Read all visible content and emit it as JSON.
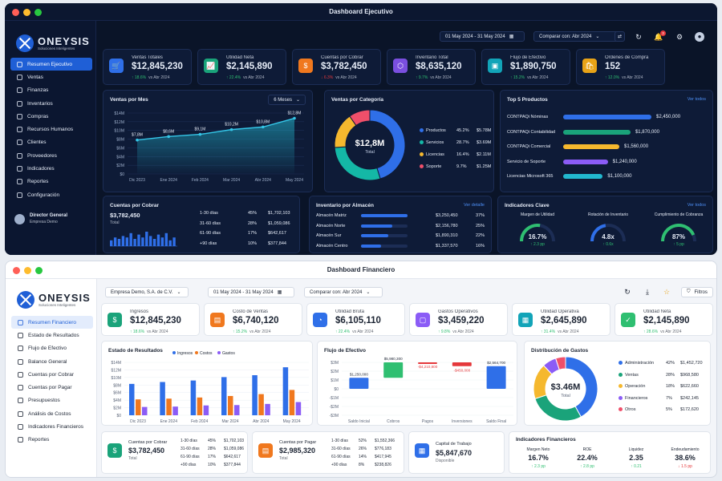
{
  "dark": {
    "title": "Dashboard Ejecutivo",
    "logo": {
      "name": "ONEYSIS",
      "sub": "Soluciones Inteligentes"
    },
    "nav": [
      "Resumen Ejecutivo",
      "Ventas",
      "Finanzas",
      "Inventarios",
      "Compras",
      "Recursos Humanos",
      "Clientes",
      "Proveedores",
      "Indicadores",
      "Reportes",
      "Configuración"
    ],
    "user": {
      "name": "Director General",
      "company": "Empresa Demo"
    },
    "date_range": "01 May 2024 - 31 May 2024",
    "compare": "Comparar con: Abr 2024",
    "notif_count": "3",
    "kpis": [
      {
        "label": "Ventas Totales",
        "value": "$12,845,230",
        "delta": "18.6%",
        "dir": "up",
        "vs": "vs Abr 2024",
        "color": "#2f6fe8",
        "icon": "🛒"
      },
      {
        "label": "Utilidad Neta",
        "value": "$2,145,890",
        "delta": "22.4%",
        "dir": "up",
        "vs": "vs Abr 2024",
        "color": "#1aa37a",
        "icon": "📈"
      },
      {
        "label": "Cuentas por Cobrar",
        "value": "$3,782,450",
        "delta": "6.3%",
        "dir": "down",
        "vs": "vs Abr 2024",
        "color": "#f0781e",
        "icon": "$"
      },
      {
        "label": "Inventario Total",
        "value": "$8,635,120",
        "delta": "9.7%",
        "dir": "up",
        "vs": "vs Abr 2024",
        "color": "#7a4fe0",
        "icon": "⬡"
      },
      {
        "label": "Flujo de Efectivo",
        "value": "$1,890,750",
        "delta": "15.2%",
        "dir": "up",
        "vs": "vs Abr 2024",
        "color": "#12a4b8",
        "icon": "▣"
      },
      {
        "label": "Ordenes de Compra",
        "value": "152",
        "delta": "12.0%",
        "dir": "up",
        "vs": "vs Abr 2024",
        "color": "#e8a317",
        "icon": "🛍"
      }
    ],
    "ventas_mes": {
      "title": "Ventas por Mes",
      "period": "6 Meses"
    },
    "ventas_cat": {
      "title": "Ventas por Categoría",
      "total": "$12,8M",
      "total_label": "Total"
    },
    "top5": {
      "title": "Top 5 Productos",
      "link": "Ver todos"
    },
    "cxc": {
      "title": "Cuentas por Cobrar",
      "value": "$3,782,450",
      "label": "Total",
      "rows": [
        {
          "range": "1-30 días",
          "pct": "45%",
          "amt": "$1,702,103"
        },
        {
          "range": "31-60 días",
          "pct": "28%",
          "amt": "$1,059,086"
        },
        {
          "range": "61-90 días",
          "pct": "17%",
          "amt": "$642,617"
        },
        {
          "range": "+90 días",
          "pct": "10%",
          "amt": "$377,844"
        }
      ],
      "spark": [
        4,
        6,
        5,
        7,
        6,
        9,
        5,
        8,
        6,
        10,
        7,
        5,
        8,
        6,
        9,
        4,
        6
      ]
    },
    "inv_alm": {
      "title": "Inventario por Almacén",
      "link": "Ver detalle",
      "rows": [
        {
          "name": "Almacén Matriz",
          "amt": "$3,250,450",
          "pct": "37%",
          "frac": 0.37
        },
        {
          "name": "Almacén Norte",
          "amt": "$2,156,780",
          "pct": "25%",
          "frac": 0.25
        },
        {
          "name": "Almacén Sur",
          "amt": "$1,890,310",
          "pct": "22%",
          "frac": 0.22
        },
        {
          "name": "Almacén Centro",
          "amt": "$1,337,570",
          "pct": "16%",
          "frac": 0.16
        }
      ]
    },
    "indicadores": {
      "title": "Indicadores Clave",
      "link": "Ver todos",
      "gauges": [
        {
          "label": "Margen de Utilidad",
          "value": "16.7%",
          "delta": "2.3 pp",
          "frac": 0.55,
          "color": "#2fbf71"
        },
        {
          "label": "Rotación de Inventario",
          "value": "4.8x",
          "delta": "0.6x",
          "frac": 0.45,
          "color": "#2f6fe8"
        },
        {
          "label": "Cumplimiento de Cobranza",
          "value": "87%",
          "delta": "5 pp",
          "frac": 0.87,
          "color": "#2fbf71"
        }
      ]
    }
  },
  "light": {
    "title": "Dashboard Financiero",
    "logo": {
      "name": "ONEYSIS",
      "sub": "Soluciones Inteligentes"
    },
    "nav": [
      "Resumen Financiero",
      "Estado de Resultados",
      "Flujo de Efectivo",
      "Balance General",
      "Cuentas por Cobrar",
      "Cuentas por Pagar",
      "Presupuestos",
      "Análisis de Costos",
      "Indicadores Financieros",
      "Reportes"
    ],
    "company": "Empresa Demo, S.A. de C.V.",
    "date_range": "01 May 2024 - 31 May 2024",
    "compare": "Comparar con: Abr 2024",
    "filters": "Filtros",
    "kpis": [
      {
        "label": "Ingresos",
        "value": "$12,845,230",
        "delta": "18.6%",
        "dir": "up",
        "vs": "vs Abr 2024",
        "color": "#1aa37a",
        "icon": "$"
      },
      {
        "label": "Costo de Ventas",
        "value": "$6,740,120",
        "delta": "15.2%",
        "dir": "up",
        "vs": "vs Abr 2024",
        "color": "#f0781e",
        "icon": "▤"
      },
      {
        "label": "Utilidad Bruta",
        "value": "$6,105,110",
        "delta": "22.4%",
        "dir": "up",
        "vs": "vs Abr 2024",
        "color": "#2f6fe8",
        "icon": "◔"
      },
      {
        "label": "Gastos Operativos",
        "value": "$3,459,220",
        "delta": "9.8%",
        "dir": "up",
        "vs": "vs Abr 2024",
        "color": "#8b5cf6",
        "icon": "▢"
      },
      {
        "label": "Utilidad Operativa",
        "value": "$2,645,890",
        "delta": "31.4%",
        "dir": "up",
        "vs": "vs Abr 2024",
        "color": "#12a4b8",
        "icon": "▦"
      },
      {
        "label": "Utilidad Neta",
        "value": "$2,145,890",
        "delta": "28.6%",
        "dir": "up",
        "vs": "vs Abr 2024",
        "color": "#2fbf71",
        "icon": "✓"
      }
    ],
    "estado": {
      "title": "Estado de Resultados"
    },
    "flujo": {
      "title": "Flujo de Efectivo"
    },
    "gastos": {
      "title": "Distribución de Gastos",
      "total": "$3.46M",
      "total_label": "Total"
    },
    "cxc": {
      "label": "Cuentas por Cobrar",
      "value": "$3,782,450",
      "sub": "Total",
      "rows": [
        {
          "r": "1-30 días",
          "p": "45%",
          "a": "$1,702,103"
        },
        {
          "r": "31-60 días",
          "p": "28%",
          "a": "$1,059,086"
        },
        {
          "r": "61-90 días",
          "p": "17%",
          "a": "$642,617"
        },
        {
          "r": "+90 días",
          "p": "10%",
          "a": "$377,844"
        }
      ]
    },
    "cxp": {
      "label": "Cuentas por Pagar",
      "value": "$2,985,320",
      "sub": "Total",
      "rows": [
        {
          "r": "1-30 días",
          "p": "52%",
          "a": "$1,552,366"
        },
        {
          "r": "31-60 días",
          "p": "26%",
          "a": "$776,183"
        },
        {
          "r": "61-90 días",
          "p": "14%",
          "a": "$417,945"
        },
        {
          "r": "+90 días",
          "p": "8%",
          "a": "$238,826"
        }
      ]
    },
    "capital": {
      "label": "Capital de Trabajo",
      "value": "$5,847,670",
      "sub": "Disponible"
    },
    "ind_fin": {
      "title": "Indicadores Financieros",
      "items": [
        {
          "label": "Margen Neto",
          "value": "16.7%",
          "delta": "2.3 pp",
          "dir": "up"
        },
        {
          "label": "ROE",
          "value": "22.4%",
          "delta": "2.8 pp",
          "dir": "up"
        },
        {
          "label": "Liquidez",
          "value": "2.35",
          "delta": "0.21",
          "dir": "up"
        },
        {
          "label": "Endeudamiento",
          "value": "38.6%",
          "delta": "1.5 pp",
          "dir": "down"
        }
      ]
    }
  },
  "chart_data": [
    {
      "type": "area",
      "title": "Ventas por Mes",
      "categories": [
        "Dic 2023",
        "Ene 2024",
        "Feb 2024",
        "Mar 2024",
        "Abr 2024",
        "May 2024"
      ],
      "values": [
        7.8,
        8.6,
        9.1,
        10.2,
        10.8,
        12.8
      ],
      "data_labels": [
        "$7,8M",
        "$8,6M",
        "$9,1M",
        "$10,2M",
        "$10,8M",
        "$12,8M"
      ],
      "yticks": [
        "$0",
        "$2M",
        "$4M",
        "$6M",
        "$8M",
        "$10M",
        "$12M",
        "$14M"
      ],
      "ylim": [
        0,
        14
      ]
    },
    {
      "type": "pie",
      "title": "Ventas por Categoría",
      "series": [
        {
          "name": "Productos",
          "pct": "45.2%",
          "value": 45.2,
          "amount": "$5.78M",
          "color": "#2f6fe8"
        },
        {
          "name": "Servicios",
          "pct": "28.7%",
          "value": 28.7,
          "amount": "$3.69M",
          "color": "#14b8a6"
        },
        {
          "name": "Licencias",
          "pct": "16.4%",
          "value": 16.4,
          "amount": "$2.11M",
          "color": "#f5b82e"
        },
        {
          "name": "Soporte",
          "pct": "9.7%",
          "value": 9.7,
          "amount": "$1.25M",
          "color": "#ef4f6a"
        }
      ]
    },
    {
      "type": "bar",
      "title": "Top 5 Productos",
      "categories": [
        "CONTPAQi Nóminas",
        "CONTPAQi Contabilidad",
        "CONTPAQi Comercial",
        "Servicio de Soporte",
        "Licencias Microsoft 365"
      ],
      "values": [
        2450000,
        1870000,
        1560000,
        1240000,
        1100000
      ],
      "labels": [
        "$2,450,000",
        "$1,870,000",
        "$1,560,000",
        "$1,240,000",
        "$1,100,000"
      ],
      "colors": [
        "#2f6fe8",
        "#1aa37a",
        "#f5b82e",
        "#8b5cf6",
        "#22b8cf"
      ]
    },
    {
      "type": "bar",
      "title": "Estado de Resultados",
      "categories": [
        "Dic 2023",
        "Ene 2024",
        "Feb 2024",
        "Mar 2024",
        "Abr 2024",
        "May 2024"
      ],
      "series": [
        {
          "name": "Ingresos",
          "values": [
            8.3,
            8.8,
            9.2,
            10.1,
            10.6,
            12.7
          ],
          "color": "#2f6fe8"
        },
        {
          "name": "Costos",
          "values": [
            4.2,
            4.4,
            4.7,
            5.1,
            5.6,
            6.7
          ],
          "color": "#f0781e"
        },
        {
          "name": "Gastos",
          "values": [
            2.2,
            2.3,
            2.6,
            2.7,
            3.0,
            3.5
          ],
          "color": "#8b5cf6"
        }
      ],
      "yticks": [
        "$0",
        "$2M",
        "$4M",
        "$6M",
        "$8M",
        "$10M",
        "$12M",
        "$14M"
      ],
      "ylim": [
        0,
        14
      ]
    },
    {
      "type": "bar",
      "title": "Flujo de Efectivo",
      "categories": [
        "Saldo Inicial",
        "Cobros",
        "Pagos",
        "Inversiones",
        "Saldo Final"
      ],
      "values": [
        1.25,
        5.98,
        -4.21,
        -0.45,
        2.564
      ],
      "labels": [
        "$1,250,000",
        "$5,980,300",
        "-$4,210,800",
        "-$450,000",
        "$2,564,700"
      ],
      "colors": [
        "#2f6fe8",
        "#2fbf71",
        "#e5383b",
        "#e5383b",
        "#2f6fe8"
      ],
      "yticks": [
        "$3M",
        "$2M",
        "$1M",
        "$0",
        "-$1M",
        "-$2M",
        "-$3M"
      ],
      "ylim": [
        -3,
        3
      ]
    },
    {
      "type": "pie",
      "title": "Distribución de Gastos",
      "series": [
        {
          "name": "Administración",
          "pct": "42%",
          "value": 42,
          "amount": "$1,452,720",
          "color": "#2f6fe8"
        },
        {
          "name": "Ventas",
          "pct": "28%",
          "value": 28,
          "amount": "$968,580",
          "color": "#1aa37a"
        },
        {
          "name": "Operación",
          "pct": "18%",
          "value": 18,
          "amount": "$622,660",
          "color": "#f5b82e"
        },
        {
          "name": "Financieros",
          "pct": "7%",
          "value": 7,
          "amount": "$242,145",
          "color": "#8b5cf6"
        },
        {
          "name": "Otros",
          "pct": "5%",
          "value": 5,
          "amount": "$172,620",
          "color": "#ef4f6a"
        }
      ]
    }
  ]
}
